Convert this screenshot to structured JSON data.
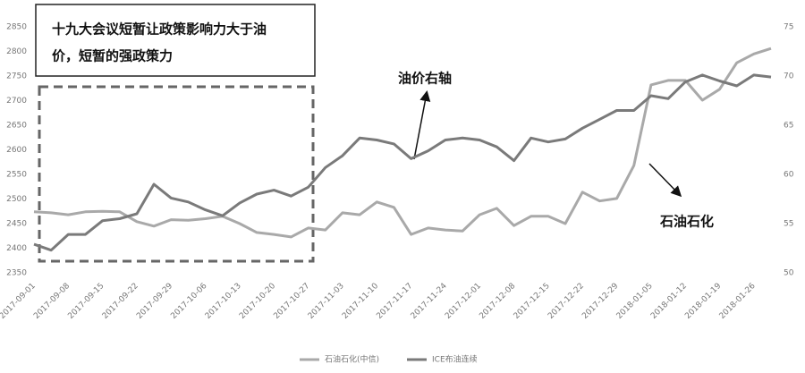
{
  "chart_data": {
    "type": "line",
    "title_lines": [
      "十九大会议短暂让政策影响力大于油",
      "价，短暂的强政策力"
    ],
    "annotations": [
      "油价右轴",
      "石油石化"
    ],
    "categories": [
      "2017-09-01",
      null,
      "2017-09-08",
      null,
      "2017-09-15",
      null,
      "2017-09-22",
      null,
      "2017-09-29",
      null,
      "2017-10-06",
      null,
      "2017-10-13",
      null,
      "2017-10-20",
      null,
      "2017-10-27",
      null,
      "2017-11-03",
      null,
      "2017-11-10",
      null,
      "2017-11-17",
      null,
      "2017-11-24",
      null,
      "2017-12-01",
      null,
      "2017-12-08",
      null,
      "2017-12-15",
      null,
      "2017-12-22",
      null,
      "2017-12-29",
      null,
      "2018-01-05",
      null,
      "2018-01-12",
      null,
      "2018-01-19",
      null,
      "2018-01-26",
      null
    ],
    "series": [
      {
        "name": "石油石化(中信)",
        "color": "#a9a9a9",
        "axis": "y",
        "values": [
          2474,
          2472,
          2468,
          2474,
          2475,
          2474,
          2454,
          2445,
          2458,
          2457,
          2460,
          2465,
          2450,
          2432,
          2428,
          2423,
          2441,
          2437,
          2472,
          2468,
          2494,
          2483,
          2428,
          2441,
          2437,
          2435,
          2468,
          2481,
          2446,
          2465,
          2465,
          2450,
          2514,
          2496,
          2501,
          2568,
          2732,
          2741,
          2741,
          2701,
          2723,
          2777,
          2795,
          2806
        ]
      },
      {
        "name": "ICE布油连续",
        "color": "#7a7a7a",
        "axis": "y2",
        "values": [
          52.9,
          52.3,
          53.9,
          53.9,
          55.3,
          55.5,
          56.0,
          59.0,
          57.6,
          57.2,
          56.4,
          55.8,
          57.1,
          58.0,
          58.4,
          57.8,
          58.7,
          60.7,
          61.9,
          63.7,
          63.5,
          63.1,
          61.6,
          62.4,
          63.5,
          63.7,
          63.5,
          62.8,
          61.4,
          63.7,
          63.3,
          63.6,
          64.7,
          65.6,
          66.5,
          66.5,
          68.0,
          67.7,
          69.4,
          70.1,
          69.5,
          69.0,
          70.1,
          69.9
        ]
      }
    ],
    "ylim": [
      2350,
      2850
    ],
    "yticks": [
      2350,
      2400,
      2450,
      2500,
      2550,
      2600,
      2650,
      2700,
      2750,
      2800,
      2850
    ],
    "y2lim": [
      50,
      75
    ],
    "y2ticks": [
      50,
      55,
      60,
      65,
      70,
      75
    ],
    "grid": false,
    "legend": "bottom"
  }
}
